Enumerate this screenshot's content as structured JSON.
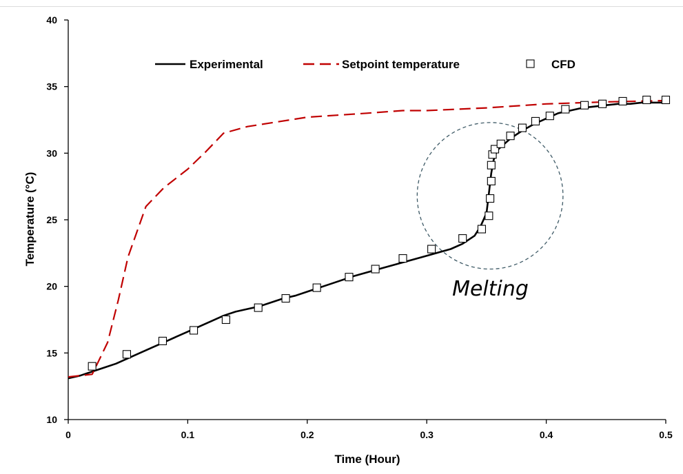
{
  "chart_data": {
    "type": "line",
    "title": "",
    "xlabel": "Time (Hour)",
    "ylabel": "Temperature (°C)",
    "xlim": [
      0,
      0.5
    ],
    "ylim": [
      10,
      40
    ],
    "xticks": [
      "0",
      "0.1",
      "0.2",
      "0.3",
      "0.4",
      "0.5"
    ],
    "yticks": [
      "10",
      "15",
      "20",
      "25",
      "30",
      "35",
      "40"
    ],
    "grid": false,
    "legend_position": "top",
    "annotation": "Melting",
    "annotation_circle": {
      "cx": 0.353,
      "cy": 26.8,
      "rx": 0.061,
      "ry": 5.5
    },
    "series": [
      {
        "name": "Experimental",
        "style": "solid",
        "color": "#000000",
        "x": [
          0,
          0.01,
          0.02,
          0.03,
          0.04,
          0.05,
          0.06,
          0.07,
          0.08,
          0.09,
          0.1,
          0.11,
          0.12,
          0.13,
          0.14,
          0.15,
          0.16,
          0.17,
          0.18,
          0.19,
          0.2,
          0.22,
          0.24,
          0.26,
          0.28,
          0.3,
          0.32,
          0.33,
          0.34,
          0.345,
          0.35,
          0.352,
          0.354,
          0.356,
          0.358,
          0.36,
          0.365,
          0.37,
          0.38,
          0.39,
          0.4,
          0.41,
          0.42,
          0.43,
          0.44,
          0.45,
          0.46,
          0.47,
          0.48,
          0.49,
          0.5
        ],
        "y": [
          13.1,
          13.3,
          13.6,
          13.9,
          14.2,
          14.6,
          15.0,
          15.4,
          15.8,
          16.2,
          16.6,
          17.0,
          17.4,
          17.8,
          18.1,
          18.3,
          18.5,
          18.8,
          19.1,
          19.3,
          19.6,
          20.2,
          20.8,
          21.3,
          21.8,
          22.3,
          22.8,
          23.2,
          23.8,
          24.5,
          25.5,
          27.0,
          28.5,
          29.5,
          30.0,
          30.3,
          30.7,
          31.1,
          31.7,
          32.2,
          32.6,
          33.0,
          33.2,
          33.4,
          33.5,
          33.6,
          33.7,
          33.7,
          33.8,
          33.8,
          33.8
        ]
      },
      {
        "name": "Setpoint temperature",
        "style": "dashed",
        "color": "#c00000",
        "x": [
          0,
          0.02,
          0.026,
          0.033,
          0.042,
          0.05,
          0.065,
          0.08,
          0.1,
          0.115,
          0.13,
          0.15,
          0.2,
          0.25,
          0.28,
          0.3,
          0.35,
          0.4,
          0.45,
          0.5
        ],
        "y": [
          13.2,
          13.4,
          14.5,
          15.8,
          19.0,
          22.2,
          26.0,
          27.4,
          28.8,
          30.1,
          31.5,
          32.0,
          32.7,
          33.0,
          33.2,
          33.2,
          33.4,
          33.7,
          33.85,
          33.95
        ]
      },
      {
        "name": "CFD",
        "style": "markers",
        "color": "#000000",
        "x": [
          0.02,
          0.049,
          0.079,
          0.105,
          0.132,
          0.159,
          0.182,
          0.208,
          0.235,
          0.257,
          0.28,
          0.304,
          0.33,
          0.346,
          0.352,
          0.353,
          0.354,
          0.354,
          0.355,
          0.357,
          0.362,
          0.37,
          0.38,
          0.391,
          0.403,
          0.416,
          0.432,
          0.447,
          0.464,
          0.484,
          0.5
        ],
        "y": [
          14.0,
          14.9,
          15.9,
          16.7,
          17.5,
          18.4,
          19.1,
          19.9,
          20.7,
          21.3,
          22.1,
          22.8,
          23.6,
          24.3,
          25.3,
          26.6,
          27.9,
          29.1,
          29.9,
          30.3,
          30.7,
          31.3,
          31.9,
          32.4,
          32.8,
          33.3,
          33.6,
          33.7,
          33.9,
          34.0,
          34.0
        ]
      }
    ]
  }
}
